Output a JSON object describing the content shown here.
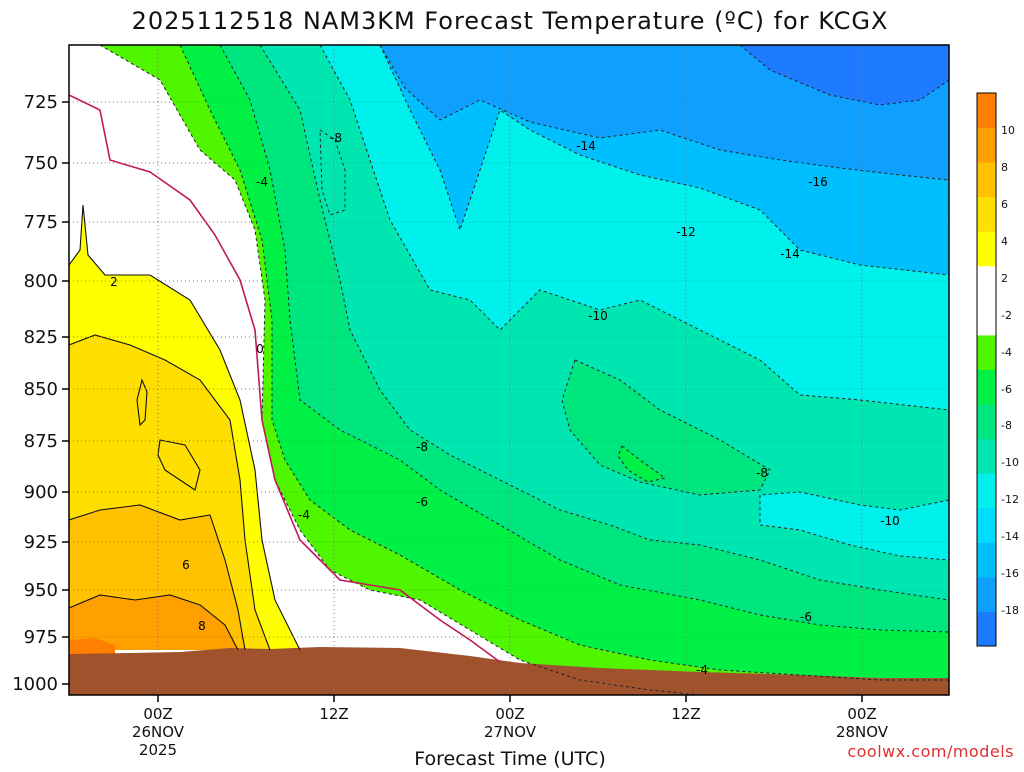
{
  "chart_data": {
    "type": "heatmap",
    "title": "2025112518 NAM3KM Forecast Temperature (ºC) for KCGX",
    "xlabel": "Forecast Time (UTC)",
    "ylabel": "",
    "credit": "coolwx.com/models",
    "y_axis": {
      "reversed": true,
      "range": [
        700,
        1005
      ],
      "ticks": [
        725,
        750,
        775,
        800,
        825,
        850,
        875,
        900,
        925,
        950,
        975,
        1000
      ],
      "labels": [
        "725",
        "750",
        "775",
        "800",
        "825",
        "850",
        "875",
        "900",
        "925",
        "950",
        "975",
        "1000"
      ]
    },
    "x_axis": {
      "range_hours": [
        -5,
        45
      ],
      "ticks": [
        {
          "hour": 0,
          "lines": [
            "00Z",
            "26NOV",
            "2025"
          ]
        },
        {
          "hour": 10,
          "lines": [
            "12Z"
          ]
        },
        {
          "hour": 20,
          "lines": [
            "00Z",
            "27NOV"
          ]
        },
        {
          "hour": 30,
          "lines": [
            "12Z"
          ]
        },
        {
          "hour": 40,
          "lines": [
            "00Z",
            "28NOV"
          ]
        }
      ]
    },
    "colorbar": {
      "bins": [
        {
          "lo": -20,
          "hi": -18,
          "color": "#1e7bff"
        },
        {
          "lo": -18,
          "hi": -16,
          "color": "#0fa0ff"
        },
        {
          "lo": -16,
          "hi": -14,
          "color": "#00bfff"
        },
        {
          "lo": -14,
          "hi": -12,
          "color": "#00dcff"
        },
        {
          "lo": -12,
          "hi": -10,
          "color": "#00f0ec"
        },
        {
          "lo": -10,
          "hi": -8,
          "color": "#00e6b0"
        },
        {
          "lo": -8,
          "hi": -6,
          "color": "#00e67e"
        },
        {
          "lo": -6,
          "hi": -4,
          "color": "#00f046"
        },
        {
          "lo": -4,
          "hi": -2,
          "color": "#50f500"
        },
        {
          "lo": -2,
          "hi": 2,
          "color": "#ffffff"
        },
        {
          "lo": 2,
          "hi": 4,
          "color": "#ffff00"
        },
        {
          "lo": 4,
          "hi": 6,
          "color": "#ffdf00"
        },
        {
          "lo": 6,
          "hi": 8,
          "color": "#ffc100"
        },
        {
          "lo": 8,
          "hi": 10,
          "color": "#ffa000"
        },
        {
          "lo": 10,
          "hi": 12,
          "color": "#ff8000"
        }
      ],
      "labels": [
        "10",
        "8",
        "6",
        "4",
        "2",
        "-2",
        "-4",
        "-6",
        "-8",
        "-10",
        "-12",
        "-14",
        "-16",
        "-18"
      ],
      "label_values": [
        10,
        8,
        6,
        4,
        2,
        -2,
        -4,
        -6,
        -8,
        -10,
        -12,
        -14,
        -16,
        -18
      ],
      "terrain_color": "#a0522d"
    },
    "contour_labels": [
      {
        "text": "-14",
        "hour": 29.4,
        "p": 754
      },
      {
        "text": "-16",
        "hour": 38.5,
        "p": 770
      },
      {
        "text": "-8",
        "hour": 10.1,
        "p": 747
      },
      {
        "text": "-4",
        "hour": 6.0,
        "p": 771
      },
      {
        "text": "-12",
        "hour": 32.7,
        "p": 792
      },
      {
        "text": "-14",
        "hour": 35.8,
        "p": 817
      },
      {
        "text": "2",
        "hour": -2.5,
        "p": 813
      },
      {
        "text": "-10",
        "hour": 28.2,
        "p": 843
      },
      {
        "text": "0",
        "hour": 6.0,
        "p": 849
      },
      {
        "text": "-8",
        "hour": 17.3,
        "p": 887
      },
      {
        "text": "-8",
        "hour": 34.2,
        "p": 890
      },
      {
        "text": "-6",
        "hour": 17.3,
        "p": 914
      },
      {
        "text": "-4",
        "hour": 8.2,
        "p": 919
      },
      {
        "text": "-10",
        "hour": 40.9,
        "p": 927
      },
      {
        "text": "6",
        "hour": 1.6,
        "p": 956
      },
      {
        "text": "8",
        "hour": 2.4,
        "p": 985
      },
      {
        "text": "-6",
        "hour": 37.0,
        "p": 978
      },
      {
        "text": "-4",
        "hour": 30.9,
        "p": 1018
      }
    ]
  }
}
